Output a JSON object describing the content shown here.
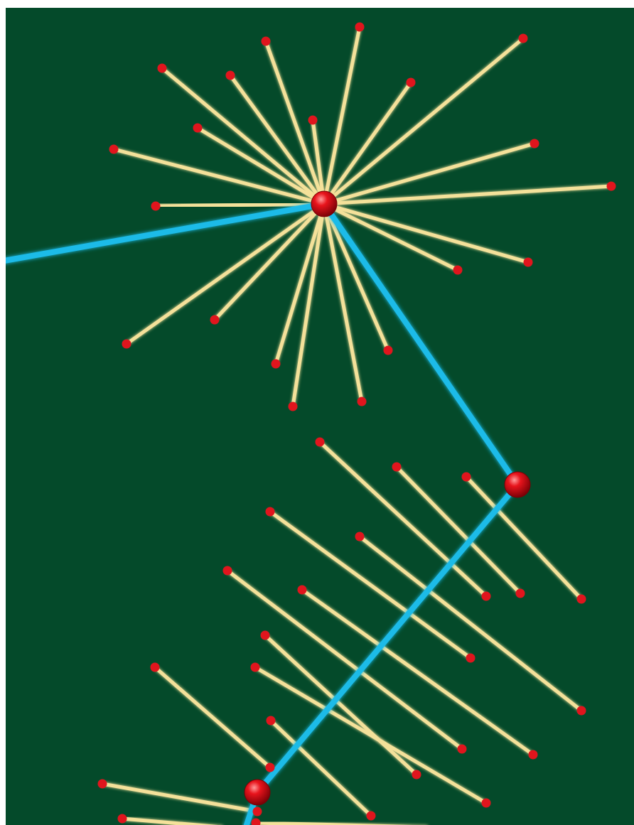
{
  "colors": {
    "board": "#044a2a",
    "stick": "#f4e19a",
    "stick_glow": "#c9e58a",
    "path": "#1bbbe8",
    "path_glow": "#8fe4ff",
    "tip": "#e0151d",
    "node": "#e8141c",
    "node_highlight": "#ff9a9a",
    "node_shadow": "#7a0006"
  },
  "icons": {
    "stick": "matchstick-line",
    "tip": "red-dot",
    "node": "red-sphere",
    "path": "blue-glow-line"
  }
}
